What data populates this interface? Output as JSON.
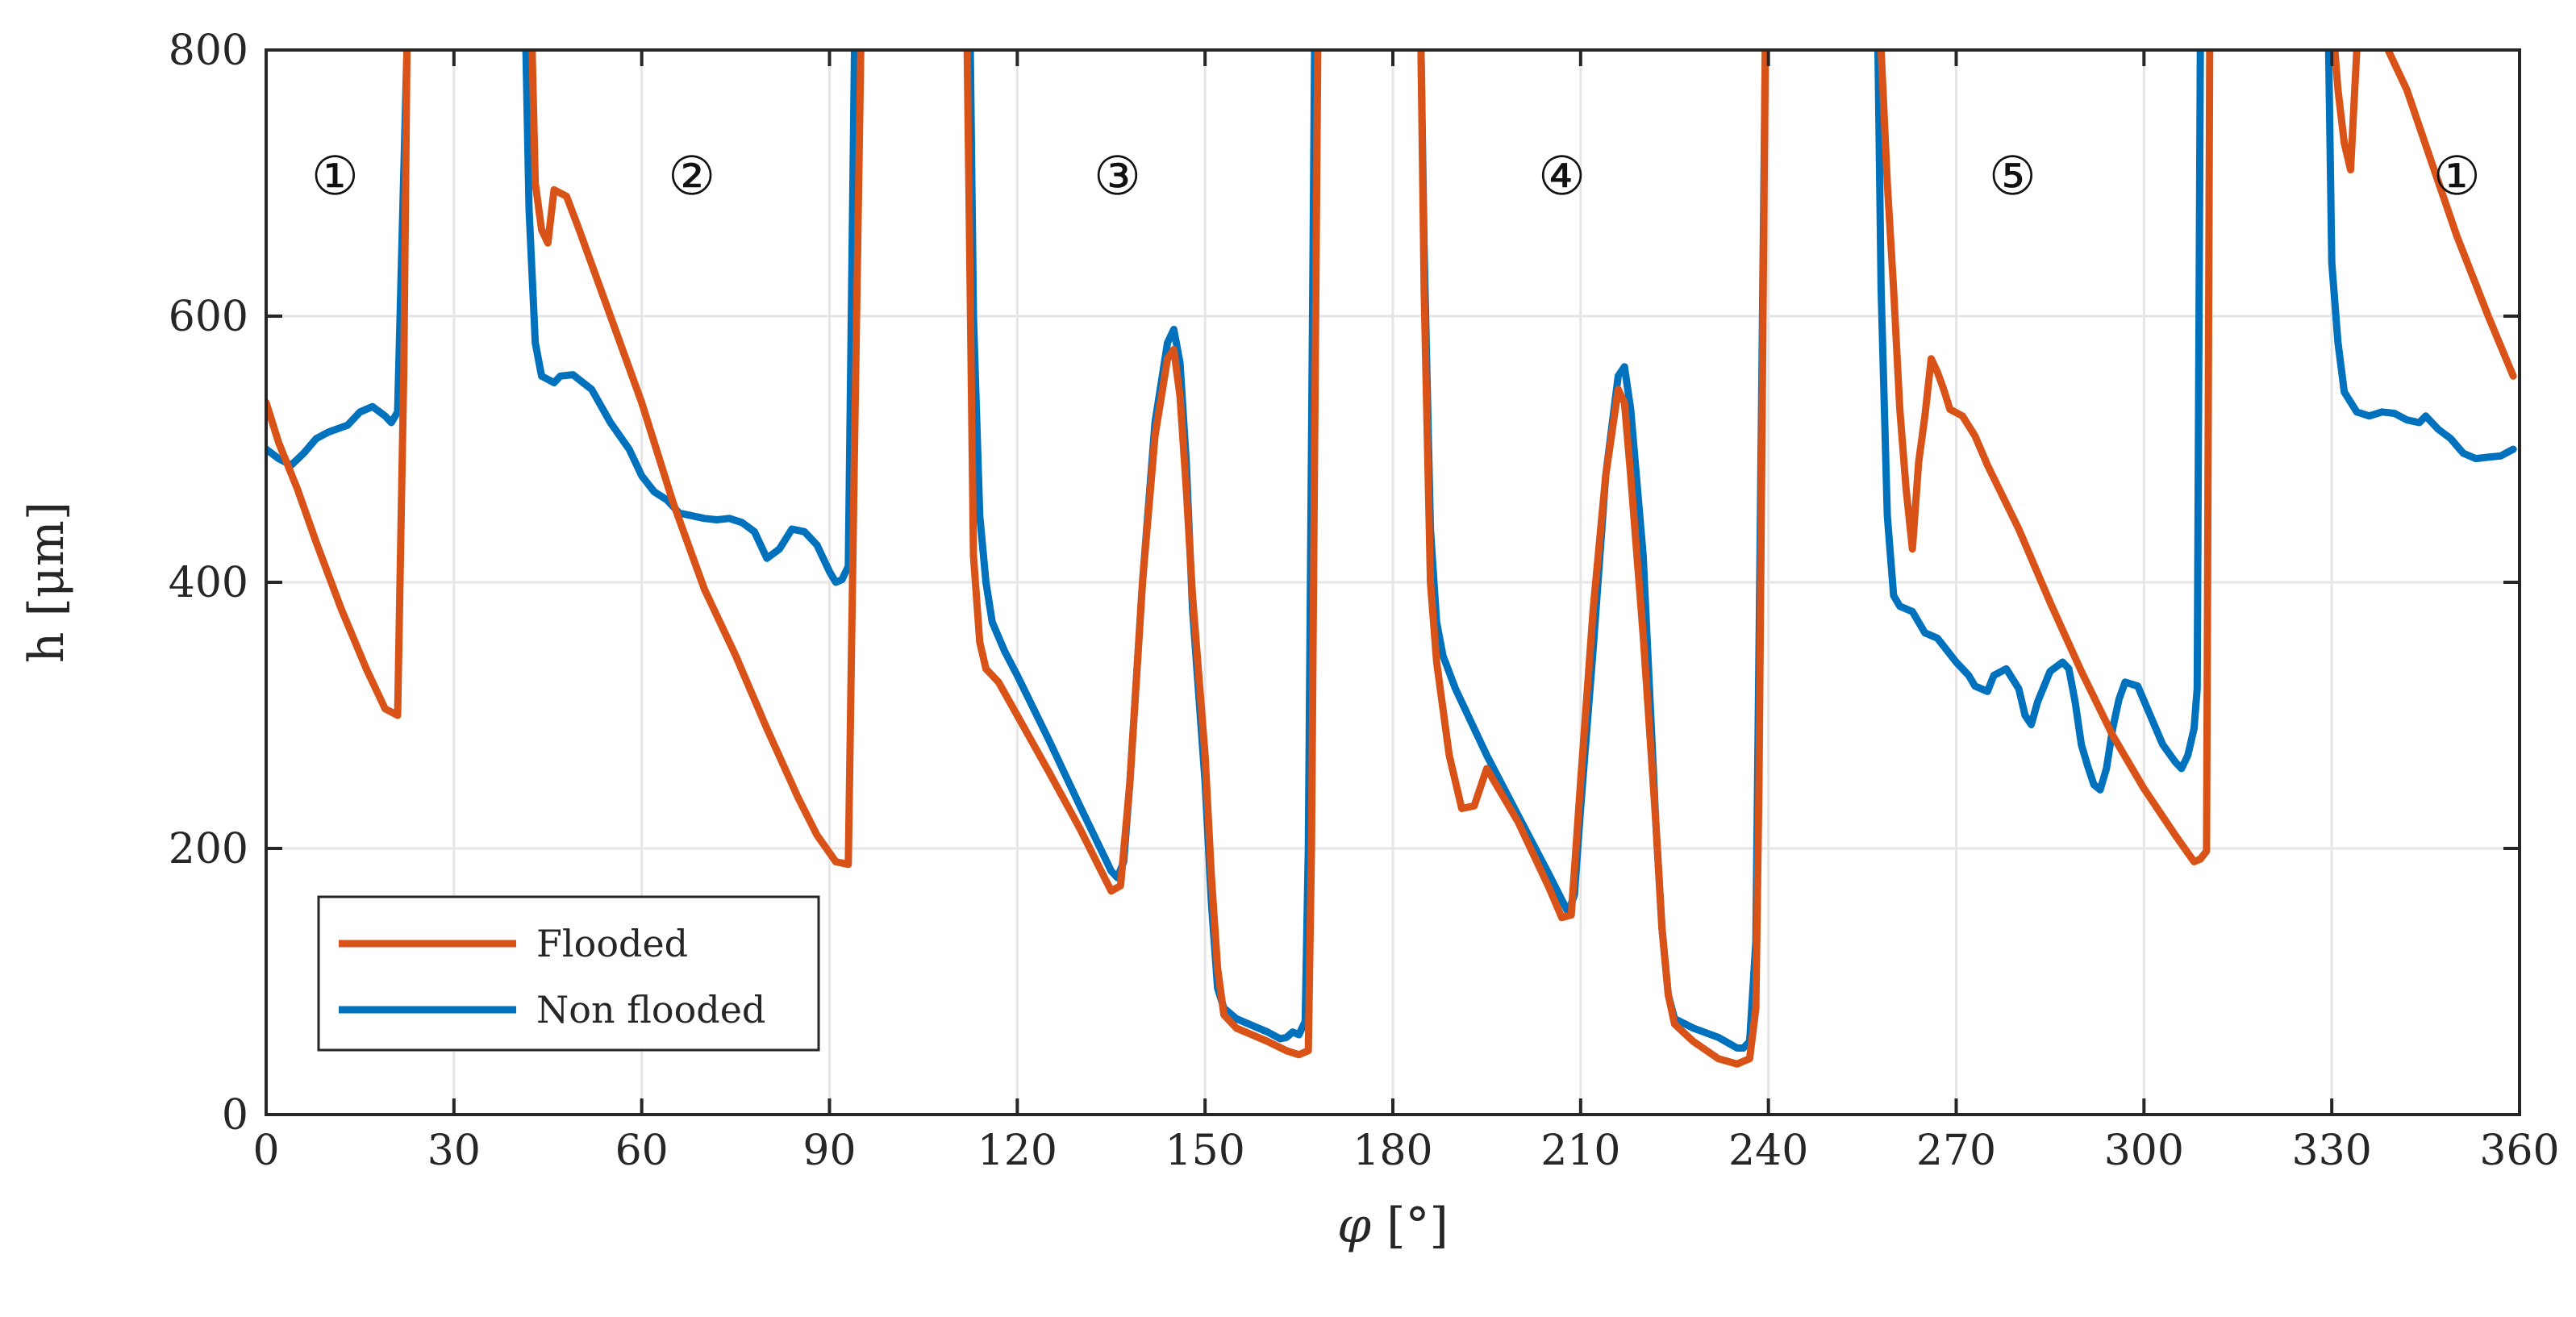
{
  "chart_data": {
    "type": "line",
    "title": "",
    "xlabel_symbol": "φ",
    "xlabel_unit": "[°]",
    "ylabel": "h [μm]",
    "xlim": [
      0,
      360
    ],
    "ylim": [
      0,
      800
    ],
    "xticks": [
      0,
      30,
      60,
      90,
      120,
      150,
      180,
      210,
      240,
      270,
      300,
      330,
      360
    ],
    "yticks": [
      0,
      200,
      400,
      600,
      800
    ],
    "grid": true,
    "legend_position": "bottom-left",
    "region_labels": [
      {
        "text": "①",
        "x": 11,
        "y": 705
      },
      {
        "text": "②",
        "x": 68,
        "y": 705
      },
      {
        "text": "③",
        "x": 136,
        "y": 705
      },
      {
        "text": "④",
        "x": 207,
        "y": 705
      },
      {
        "text": "⑤",
        "x": 279,
        "y": 705
      },
      {
        "text": "①",
        "x": 350,
        "y": 705
      }
    ],
    "series": [
      {
        "name": "Flooded",
        "color": "#D95319",
        "points": [
          [
            0,
            535
          ],
          [
            2,
            505
          ],
          [
            5,
            470
          ],
          [
            8,
            430
          ],
          [
            12,
            380
          ],
          [
            16,
            335
          ],
          [
            19,
            305
          ],
          [
            21,
            300
          ],
          [
            22,
            560
          ],
          [
            22.5,
            800
          ],
          null,
          [
            42.5,
            800
          ],
          [
            43,
            700
          ],
          [
            44,
            665
          ],
          [
            45,
            655
          ],
          [
            46,
            695
          ],
          [
            48,
            690
          ],
          [
            50,
            665
          ],
          [
            55,
            600
          ],
          [
            60,
            535
          ],
          [
            65,
            460
          ],
          [
            70,
            395
          ],
          [
            75,
            345
          ],
          [
            80,
            290
          ],
          [
            85,
            238
          ],
          [
            88,
            210
          ],
          [
            91,
            190
          ],
          [
            93,
            188
          ],
          [
            94,
            500
          ],
          [
            95,
            800
          ],
          null,
          [
            112,
            800
          ],
          [
            113,
            420
          ],
          [
            114,
            355
          ],
          [
            115,
            335
          ],
          [
            117,
            325
          ],
          [
            120,
            300
          ],
          [
            125,
            258
          ],
          [
            130,
            215
          ],
          [
            135,
            168
          ],
          [
            136.5,
            172
          ],
          [
            138,
            250
          ],
          [
            140,
            400
          ],
          [
            142,
            510
          ],
          [
            144,
            568
          ],
          [
            145,
            575
          ],
          [
            146,
            540
          ],
          [
            147,
            470
          ],
          [
            148,
            390
          ],
          [
            150,
            270
          ],
          [
            151,
            180
          ],
          [
            152,
            110
          ],
          [
            153,
            75
          ],
          [
            155,
            65
          ],
          [
            160,
            55
          ],
          [
            163,
            48
          ],
          [
            165,
            45
          ],
          [
            166.5,
            48
          ],
          [
            167,
            200
          ],
          [
            168,
            800
          ],
          null,
          [
            184.5,
            800
          ],
          [
            185,
            620
          ],
          [
            186,
            400
          ],
          [
            187,
            340
          ],
          [
            189,
            270
          ],
          [
            191,
            230
          ],
          [
            193,
            232
          ],
          [
            195,
            260
          ],
          [
            200,
            220
          ],
          [
            205,
            170
          ],
          [
            207,
            148
          ],
          [
            208.5,
            150
          ],
          [
            210,
            250
          ],
          [
            212,
            380
          ],
          [
            214,
            480
          ],
          [
            216,
            545
          ],
          [
            217,
            535
          ],
          [
            218,
            480
          ],
          [
            220,
            360
          ],
          [
            222,
            220
          ],
          [
            223,
            140
          ],
          [
            224,
            90
          ],
          [
            225,
            68
          ],
          [
            228,
            55
          ],
          [
            232,
            42
          ],
          [
            235,
            38
          ],
          [
            237,
            42
          ],
          [
            238,
            80
          ],
          [
            238.5,
            250
          ],
          [
            239.5,
            800
          ],
          null,
          [
            258,
            800
          ],
          [
            259,
            700
          ],
          [
            260,
            620
          ],
          [
            261,
            530
          ],
          [
            262,
            470
          ],
          [
            263,
            425
          ],
          [
            264,
            490
          ],
          [
            265,
            525
          ],
          [
            266,
            568
          ],
          [
            267,
            558
          ],
          [
            268,
            545
          ],
          [
            269,
            530
          ],
          [
            271,
            525
          ],
          [
            273,
            510
          ],
          [
            275,
            488
          ],
          [
            280,
            440
          ],
          [
            285,
            385
          ],
          [
            290,
            333
          ],
          [
            295,
            285
          ],
          [
            300,
            245
          ],
          [
            305,
            210
          ],
          [
            308,
            190
          ],
          [
            309,
            192
          ],
          [
            310,
            198
          ],
          [
            310.5,
            800
          ],
          null,
          [
            330.5,
            800
          ],
          [
            331,
            770
          ],
          [
            332,
            730
          ],
          [
            333,
            710
          ],
          [
            334,
            800
          ],
          null,
          [
            339,
            800
          ],
          [
            342,
            770
          ],
          [
            346,
            715
          ],
          [
            350,
            660
          ],
          [
            355,
            600
          ],
          [
            359,
            555
          ]
        ]
      },
      {
        "name": "Non flooded",
        "color": "#0072BD",
        "points": [
          [
            0,
            500
          ],
          [
            2,
            493
          ],
          [
            4,
            488
          ],
          [
            6,
            497
          ],
          [
            8,
            508
          ],
          [
            10,
            513
          ],
          [
            13,
            518
          ],
          [
            15,
            528
          ],
          [
            17,
            532
          ],
          [
            19,
            525
          ],
          [
            20,
            520
          ],
          [
            21,
            528
          ],
          [
            21.5,
            620
          ],
          [
            22.5,
            800
          ],
          null,
          [
            41.5,
            800
          ],
          [
            42,
            680
          ],
          [
            43,
            580
          ],
          [
            44,
            555
          ],
          [
            46,
            550
          ],
          [
            47,
            555
          ],
          [
            49,
            556
          ],
          [
            52,
            545
          ],
          [
            55,
            520
          ],
          [
            58,
            500
          ],
          [
            60,
            480
          ],
          [
            62,
            468
          ],
          [
            64,
            462
          ],
          [
            66,
            452
          ],
          [
            68,
            450
          ],
          [
            70,
            448
          ],
          [
            72,
            447
          ],
          [
            74,
            448
          ],
          [
            76,
            445
          ],
          [
            78,
            438
          ],
          [
            80,
            418
          ],
          [
            82,
            425
          ],
          [
            84,
            440
          ],
          [
            86,
            438
          ],
          [
            88,
            428
          ],
          [
            90,
            408
          ],
          [
            91,
            400
          ],
          [
            92,
            402
          ],
          [
            93,
            412
          ],
          [
            94,
            800
          ],
          null,
          [
            112.5,
            800
          ],
          [
            113,
            600
          ],
          [
            114,
            450
          ],
          [
            115,
            400
          ],
          [
            116,
            370
          ],
          [
            118,
            348
          ],
          [
            120,
            330
          ],
          [
            125,
            282
          ],
          [
            130,
            232
          ],
          [
            135,
            183
          ],
          [
            136,
            178
          ],
          [
            137,
            190
          ],
          [
            138,
            250
          ],
          [
            140,
            400
          ],
          [
            142,
            520
          ],
          [
            144,
            580
          ],
          [
            145,
            590
          ],
          [
            146,
            565
          ],
          [
            147,
            490
          ],
          [
            148,
            380
          ],
          [
            150,
            250
          ],
          [
            151,
            160
          ],
          [
            152,
            95
          ],
          [
            153,
            80
          ],
          [
            155,
            72
          ],
          [
            158,
            66
          ],
          [
            160,
            62
          ],
          [
            162,
            57
          ],
          [
            163,
            58
          ],
          [
            164,
            62
          ],
          [
            165,
            60
          ],
          [
            166,
            70
          ],
          [
            166.5,
            200
          ],
          [
            167.5,
            800
          ],
          null,
          [
            184.5,
            800
          ],
          [
            185,
            650
          ],
          [
            186,
            440
          ],
          [
            187,
            370
          ],
          [
            188,
            345
          ],
          [
            190,
            320
          ],
          [
            193,
            290
          ],
          [
            195,
            270
          ],
          [
            200,
            225
          ],
          [
            205,
            180
          ],
          [
            208,
            152
          ],
          [
            209,
            165
          ],
          [
            210,
            230
          ],
          [
            212,
            350
          ],
          [
            214,
            480
          ],
          [
            216,
            555
          ],
          [
            217,
            562
          ],
          [
            218,
            530
          ],
          [
            220,
            420
          ],
          [
            221,
            320
          ],
          [
            222,
            220
          ],
          [
            223,
            140
          ],
          [
            224,
            90
          ],
          [
            225,
            72
          ],
          [
            228,
            65
          ],
          [
            232,
            58
          ],
          [
            235,
            50
          ],
          [
            236,
            50
          ],
          [
            237,
            55
          ],
          [
            238,
            130
          ],
          [
            238.5,
            350
          ],
          [
            239.5,
            800
          ],
          null,
          [
            257.5,
            800
          ],
          [
            258,
            620
          ],
          [
            259,
            450
          ],
          [
            260,
            390
          ],
          [
            261,
            382
          ],
          [
            263,
            378
          ],
          [
            265,
            362
          ],
          [
            267,
            358
          ],
          [
            270,
            340
          ],
          [
            272,
            330
          ],
          [
            273,
            322
          ],
          [
            275,
            318
          ],
          [
            276,
            330
          ],
          [
            278,
            335
          ],
          [
            280,
            320
          ],
          [
            281,
            300
          ],
          [
            282,
            293
          ],
          [
            283,
            310
          ],
          [
            285,
            333
          ],
          [
            287,
            340
          ],
          [
            288,
            335
          ],
          [
            289,
            310
          ],
          [
            290,
            278
          ],
          [
            291,
            262
          ],
          [
            292,
            248
          ],
          [
            293,
            244
          ],
          [
            294,
            260
          ],
          [
            295,
            290
          ],
          [
            296,
            312
          ],
          [
            297,
            325
          ],
          [
            299,
            322
          ],
          [
            301,
            300
          ],
          [
            303,
            278
          ],
          [
            305,
            265
          ],
          [
            306,
            260
          ],
          [
            307,
            270
          ],
          [
            308,
            290
          ],
          [
            308.5,
            320
          ],
          [
            309,
            800
          ],
          null,
          [
            329.5,
            800
          ],
          [
            330,
            640
          ],
          [
            331,
            580
          ],
          [
            332,
            543
          ],
          [
            334,
            528
          ],
          [
            336,
            525
          ],
          [
            338,
            528
          ],
          [
            340,
            527
          ],
          [
            342,
            522
          ],
          [
            344,
            520
          ],
          [
            345,
            525
          ],
          [
            347,
            515
          ],
          [
            349,
            508
          ],
          [
            351,
            497
          ],
          [
            353,
            493
          ],
          [
            355,
            494
          ],
          [
            357,
            495
          ],
          [
            359,
            500
          ]
        ]
      }
    ]
  }
}
